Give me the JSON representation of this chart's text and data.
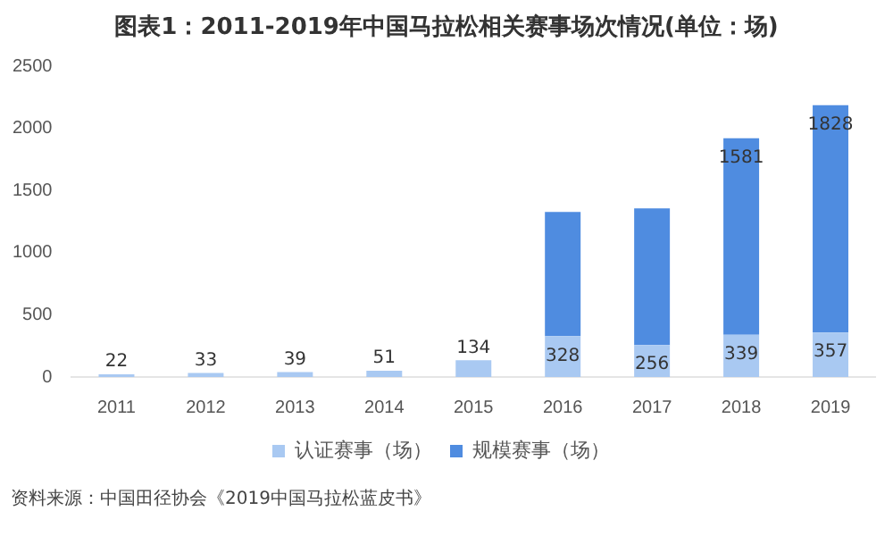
{
  "chart_data": {
    "type": "bar",
    "stacked": true,
    "title": "图表1：2011-2019年中国马拉松相关赛事场次情况(单位：场)",
    "categories": [
      "2011",
      "2012",
      "2013",
      "2014",
      "2015",
      "2016",
      "2017",
      "2018",
      "2019"
    ],
    "series": [
      {
        "name": "认证赛事（场）",
        "color": "#a9c9f2",
        "values": [
          22,
          33,
          39,
          51,
          134,
          328,
          256,
          339,
          357
        ],
        "value_labels": [
          "22",
          "33",
          "39",
          "51",
          "134",
          "328",
          "256",
          "339",
          "357"
        ]
      },
      {
        "name": "规模赛事（场）",
        "color": "#4f8ce0",
        "values": [
          null,
          null,
          null,
          null,
          null,
          1000,
          1100,
          1581,
          1828
        ],
        "value_labels": [
          null,
          null,
          null,
          null,
          null,
          null,
          null,
          "1581",
          "1828"
        ]
      }
    ],
    "ylim": [
      0,
      2500
    ],
    "yticks": [
      0,
      500,
      1000,
      1500,
      2000,
      2500
    ],
    "grid": false,
    "legend": "bottom",
    "annotations": [
      "资料来源：中国田径协会《2019中国马拉松蓝皮书》"
    ]
  }
}
